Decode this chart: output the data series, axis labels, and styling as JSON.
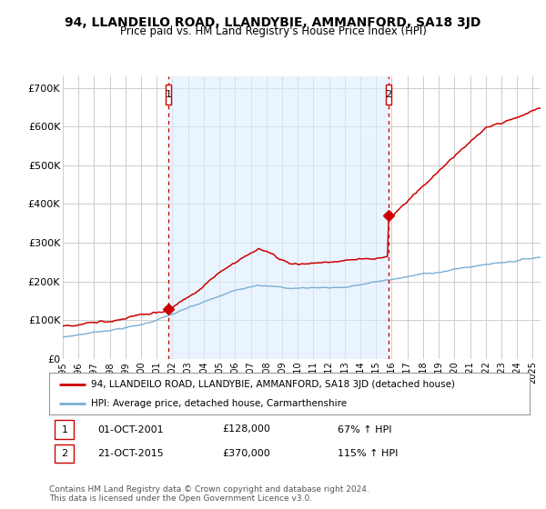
{
  "title": "94, LLANDEILO ROAD, LLANDYBIE, AMMANFORD, SA18 3JD",
  "subtitle": "Price paid vs. HM Land Registry's House Price Index (HPI)",
  "title_fontsize": 10,
  "subtitle_fontsize": 8.5,
  "background_color": "#ffffff",
  "plot_bg_color": "#ffffff",
  "grid_color": "#cccccc",
  "shade_color": "#ddeeff",
  "ylabel_ticks": [
    "£0",
    "£100K",
    "£200K",
    "£300K",
    "£400K",
    "£500K",
    "£600K",
    "£700K"
  ],
  "ytick_values": [
    0,
    100000,
    200000,
    300000,
    400000,
    500000,
    600000,
    700000
  ],
  "ylim": [
    0,
    730000
  ],
  "xlim_start": 1995.0,
  "xlim_end": 2025.5,
  "xtick_years": [
    1995,
    1996,
    1997,
    1998,
    1999,
    2000,
    2001,
    2002,
    2003,
    2004,
    2005,
    2006,
    2007,
    2008,
    2009,
    2010,
    2011,
    2012,
    2013,
    2014,
    2015,
    2016,
    2017,
    2018,
    2019,
    2020,
    2021,
    2022,
    2023,
    2024,
    2025
  ],
  "red_line_color": "#cc0000",
  "blue_line_color": "#7aafd4",
  "vline_color": "#cc0000",
  "vline_style": ":",
  "marker1_x": 2001.75,
  "marker1_y": 128000,
  "marker1_label": "1",
  "marker2_x": 2015.8,
  "marker2_y": 370000,
  "marker2_label": "2",
  "legend_line1": "94, LLANDEILO ROAD, LLANDYBIE, AMMANFORD, SA18 3JD (detached house)",
  "legend_line2": "HPI: Average price, detached house, Carmarthenshire",
  "note1_label": "1",
  "note1_date": "01-OCT-2001",
  "note1_price": "£128,000",
  "note1_hpi": "67% ↑ HPI",
  "note2_label": "2",
  "note2_date": "21-OCT-2015",
  "note2_price": "£370,000",
  "note2_hpi": "115% ↑ HPI",
  "footer": "Contains HM Land Registry data © Crown copyright and database right 2024.\nThis data is licensed under the Open Government Licence v3.0."
}
